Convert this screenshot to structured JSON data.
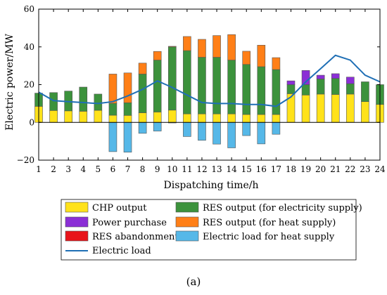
{
  "chart_data": {
    "type": "bar",
    "xlabel": "Dispatching time/h",
    "ylabel": "Electric power/MW",
    "ylim": [
      -20,
      60
    ],
    "yticks": [
      -20,
      0,
      20,
      40,
      60
    ],
    "grid": false,
    "legend_position": "bottom",
    "panel_label": "(a)",
    "categories": [
      "1",
      "2",
      "3",
      "4",
      "5",
      "6",
      "7",
      "8",
      "9",
      "10",
      "11",
      "12",
      "13",
      "14",
      "15",
      "16",
      "17",
      "18",
      "19",
      "20",
      "21",
      "22",
      "23",
      "24"
    ],
    "stacks": [
      {
        "name": "CHP output",
        "color": "#FFE21A",
        "stack": "pos",
        "values": [
          8.5,
          6.3,
          6.1,
          5.9,
          6.4,
          3.8,
          3.7,
          5.1,
          5.5,
          6.5,
          4.5,
          4.5,
          4.5,
          4.5,
          4.2,
          4.2,
          4.2,
          15.2,
          14.5,
          15,
          14.8,
          15,
          11,
          9.5
        ]
      },
      {
        "name": "RES output (for electricity supply)",
        "color": "#3C923C",
        "stack": "pos",
        "values": [
          7,
          9.5,
          10.5,
          12.8,
          8.6,
          6.3,
          6.7,
          20.5,
          27.5,
          33.5,
          33.5,
          30,
          30,
          28.5,
          26.5,
          25.3,
          23.8,
          4.8,
          5.5,
          8,
          8.5,
          5.5,
          10.5,
          10.5
        ]
      },
      {
        "name": "Power purchase",
        "color": "#8B2FD6",
        "stack": "pos",
        "values": [
          0,
          0,
          0,
          0,
          0,
          0,
          0,
          0,
          0,
          0,
          0,
          0,
          0,
          0,
          0,
          0,
          0,
          2,
          7.5,
          2,
          2.5,
          3.5,
          0,
          0
        ]
      },
      {
        "name": "RES output (for heat supply)",
        "color": "#FF7F17",
        "stack": "pos",
        "values": [
          0,
          0,
          0,
          0,
          0,
          15.5,
          15.8,
          5.8,
          4.6,
          0.3,
          7.5,
          9.5,
          11.5,
          13.5,
          7,
          11.4,
          6.3,
          0,
          0,
          0,
          0,
          0,
          0,
          0
        ]
      },
      {
        "name": "RES abandonment",
        "color": "#E8141A",
        "stack": "pos",
        "values": [
          0,
          0,
          0,
          0,
          0,
          0,
          0,
          0,
          0,
          0,
          0,
          0,
          0,
          0,
          0,
          0,
          0,
          0,
          0,
          0,
          0,
          0,
          0,
          0
        ]
      },
      {
        "name": "Electric load for heat supply",
        "color": "#56B8E8",
        "stack": "neg",
        "values": [
          0,
          0,
          0,
          0,
          0,
          -15.5,
          -15.8,
          -5.8,
          -4.6,
          -0.3,
          -7.5,
          -9.5,
          -11.5,
          -13.5,
          -7,
          -11.4,
          -6.3,
          0,
          0,
          0,
          0,
          0,
          0,
          0
        ]
      }
    ],
    "line": {
      "name": "Electric load",
      "color": "#1F6FB5",
      "values": [
        16,
        11.5,
        11,
        10.5,
        10,
        11,
        14,
        17.5,
        22,
        18.5,
        14.5,
        10.5,
        10,
        10,
        9.5,
        9.5,
        8.5,
        13.5,
        21.5,
        28.5,
        35.5,
        33,
        25,
        21.5
      ]
    }
  }
}
